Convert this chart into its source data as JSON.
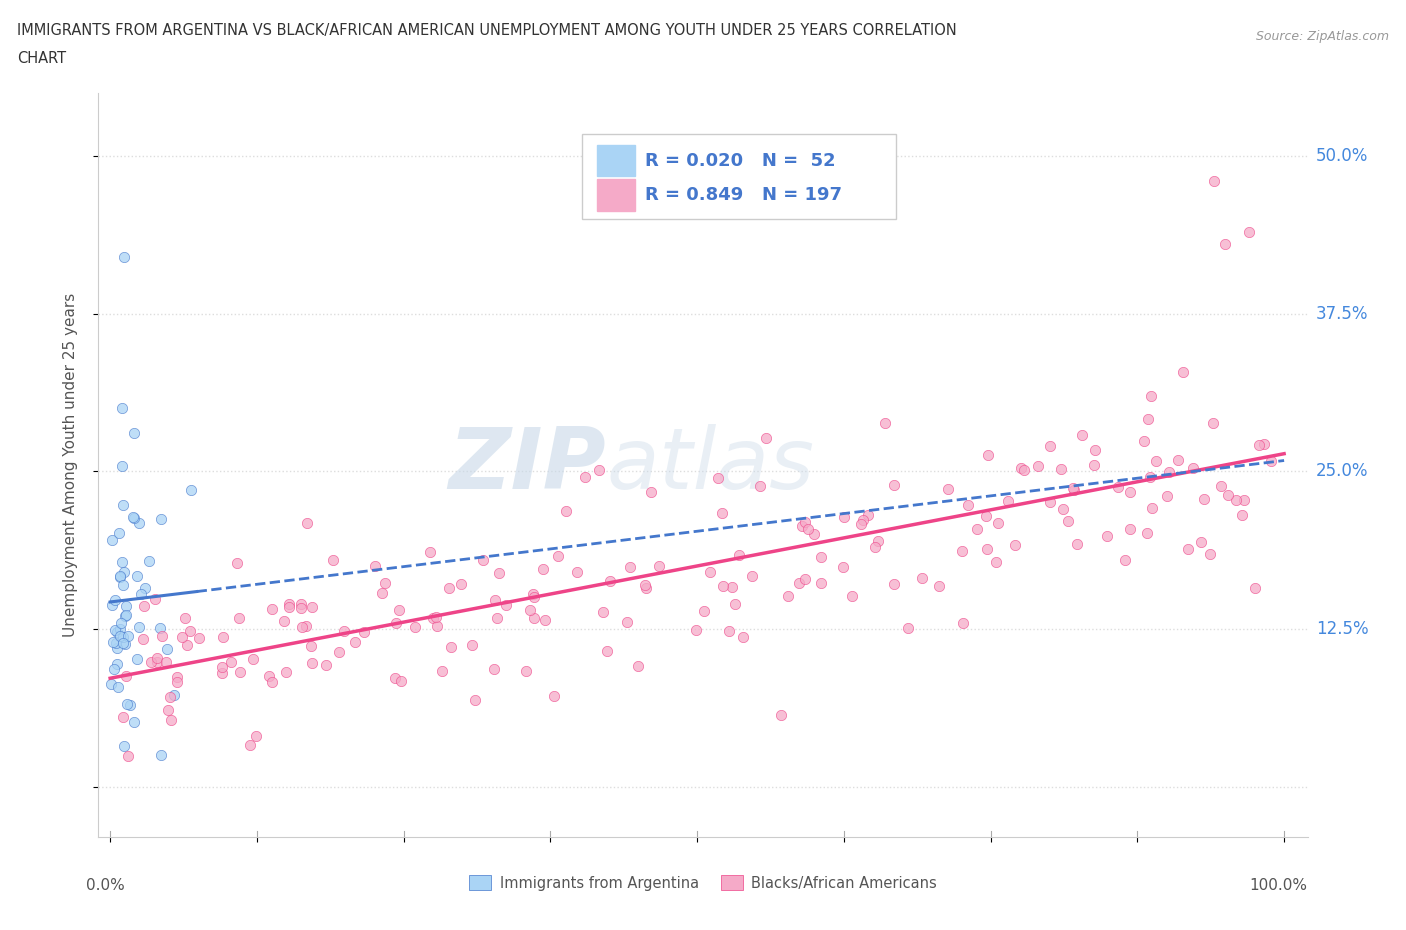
{
  "title_line1": "IMMIGRANTS FROM ARGENTINA VS BLACK/AFRICAN AMERICAN UNEMPLOYMENT AMONG YOUTH UNDER 25 YEARS CORRELATION",
  "title_line2": "CHART",
  "source": "Source: ZipAtlas.com",
  "ylabel": "Unemployment Among Youth under 25 years",
  "xlim": [
    0.0,
    1.0
  ],
  "ylim": [
    -0.04,
    0.55
  ],
  "ytick_vals": [
    0.0,
    0.125,
    0.25,
    0.375,
    0.5
  ],
  "ytick_labels": [
    "",
    "12.5%",
    "25.0%",
    "37.5%",
    "50.0%"
  ],
  "r_argentina": 0.02,
  "n_argentina": 52,
  "r_blacks": 0.849,
  "n_blacks": 197,
  "color_argentina": "#aad4f5",
  "color_blacks": "#f5aac8",
  "color_argentina_line": "#4477cc",
  "color_blacks_line": "#ee4488",
  "color_right_labels": "#4488dd",
  "legend_label_argentina": "Immigrants from Argentina",
  "legend_label_blacks": "Blacks/African Americans",
  "watermark_zip": "ZIP",
  "watermark_atlas": "atlas",
  "background_color": "#ffffff",
  "grid_color": "#dddddd",
  "title_color": "#333333"
}
